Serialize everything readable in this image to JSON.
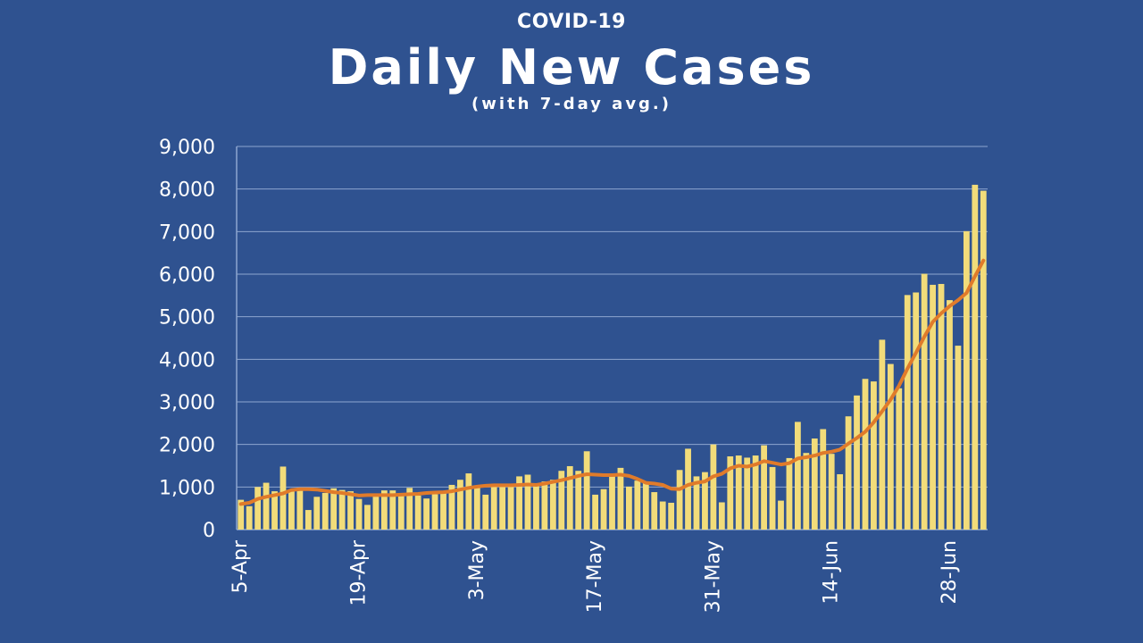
{
  "kicker": "COVID-19",
  "title": "Daily New Cases",
  "subtitle": "(with 7-day avg.)",
  "colors": {
    "background": "#2f5290",
    "bar": "#f2dc7a",
    "line": "#e07b2a",
    "grid": "#8ea6cf",
    "text": "#ffffff"
  },
  "chart_data": {
    "type": "bar",
    "title": "Daily New Cases",
    "subtitle": "(with 7-day avg.)",
    "xlabel": "",
    "ylabel": "",
    "ylim": [
      0,
      9000
    ],
    "grid": true,
    "y_ticks": [
      "0",
      "1,000",
      "2,000",
      "3,000",
      "4,000",
      "5,000",
      "6,000",
      "7,000",
      "8,000",
      "9,000"
    ],
    "x_ticks": [
      {
        "label": "5-Apr",
        "date": "2020-04-05"
      },
      {
        "label": "19-Apr",
        "date": "2020-04-19"
      },
      {
        "label": "3-May",
        "date": "2020-05-03"
      },
      {
        "label": "17-May",
        "date": "2020-05-17"
      },
      {
        "label": "31-May",
        "date": "2020-05-31"
      },
      {
        "label": "14-Jun",
        "date": "2020-06-14"
      },
      {
        "label": "28-Jun",
        "date": "2020-06-28"
      }
    ],
    "x": [
      "2020-04-05",
      "2020-04-06",
      "2020-04-07",
      "2020-04-08",
      "2020-04-09",
      "2020-04-10",
      "2020-04-11",
      "2020-04-12",
      "2020-04-13",
      "2020-04-14",
      "2020-04-15",
      "2020-04-16",
      "2020-04-17",
      "2020-04-18",
      "2020-04-19",
      "2020-04-20",
      "2020-04-21",
      "2020-04-22",
      "2020-04-23",
      "2020-04-24",
      "2020-04-25",
      "2020-04-26",
      "2020-04-27",
      "2020-04-28",
      "2020-04-29",
      "2020-04-30",
      "2020-05-01",
      "2020-05-02",
      "2020-05-03",
      "2020-05-04",
      "2020-05-05",
      "2020-05-06",
      "2020-05-07",
      "2020-05-08",
      "2020-05-09",
      "2020-05-10",
      "2020-05-11",
      "2020-05-12",
      "2020-05-13",
      "2020-05-14",
      "2020-05-15",
      "2020-05-16",
      "2020-05-17",
      "2020-05-18",
      "2020-05-19",
      "2020-05-20",
      "2020-05-21",
      "2020-05-22",
      "2020-05-23",
      "2020-05-24",
      "2020-05-25",
      "2020-05-26",
      "2020-05-27",
      "2020-05-28",
      "2020-05-29",
      "2020-05-30",
      "2020-05-31",
      "2020-06-01",
      "2020-06-02",
      "2020-06-03",
      "2020-06-04",
      "2020-06-05",
      "2020-06-06",
      "2020-06-07",
      "2020-06-08",
      "2020-06-09",
      "2020-06-10",
      "2020-06-11",
      "2020-06-12",
      "2020-06-13",
      "2020-06-14",
      "2020-06-15",
      "2020-06-16",
      "2020-06-17",
      "2020-06-18",
      "2020-06-19",
      "2020-06-20",
      "2020-06-21",
      "2020-06-22",
      "2020-06-23",
      "2020-06-24",
      "2020-06-25",
      "2020-06-26",
      "2020-06-27",
      "2020-06-28",
      "2020-06-29",
      "2020-06-30",
      "2020-07-01",
      "2020-07-02"
    ],
    "series": [
      {
        "name": "Daily New Cases",
        "type": "bar",
        "values": [
          700,
          550,
          1000,
          1100,
          900,
          1480,
          900,
          940,
          460,
          770,
          860,
          970,
          930,
          900,
          720,
          580,
          820,
          920,
          920,
          860,
          980,
          800,
          730,
          830,
          860,
          1050,
          1170,
          1320,
          1020,
          820,
          1010,
          1020,
          1040,
          1250,
          1290,
          1080,
          1130,
          1170,
          1380,
          1490,
          1380,
          1840,
          820,
          950,
          1300,
          1450,
          1010,
          1150,
          1090,
          880,
          660,
          630,
          1400,
          1900,
          1250,
          1350,
          2000,
          640,
          1720,
          1740,
          1690,
          1740,
          1980,
          1470,
          680,
          1680,
          2530,
          1800,
          2140,
          2360,
          1780,
          1300,
          2660,
          3150,
          3540,
          3480,
          4460,
          3890,
          3320,
          5510,
          5570,
          6010,
          5750,
          5770,
          5390,
          4320,
          7010,
          8100,
          7960
        ]
      },
      {
        "name": "7-day avg.",
        "type": "line",
        "values": [
          600,
          630,
          720,
          770,
          810,
          850,
          930,
          950,
          950,
          940,
          910,
          880,
          860,
          830,
          800,
          810,
          810,
          810,
          810,
          820,
          830,
          840,
          860,
          870,
          880,
          900,
          940,
          980,
          1010,
          1030,
          1040,
          1040,
          1040,
          1050,
          1060,
          1050,
          1080,
          1120,
          1160,
          1210,
          1260,
          1300,
          1290,
          1280,
          1280,
          1290,
          1260,
          1190,
          1100,
          1080,
          1050,
          960,
          950,
          1050,
          1100,
          1130,
          1250,
          1310,
          1440,
          1500,
          1480,
          1530,
          1610,
          1570,
          1530,
          1560,
          1670,
          1700,
          1740,
          1800,
          1830,
          1880,
          2020,
          2150,
          2300,
          2520,
          2780,
          3050,
          3380,
          3780,
          4150,
          4530,
          4880,
          5080,
          5250,
          5390,
          5560,
          5950,
          6320
        ]
      }
    ]
  }
}
